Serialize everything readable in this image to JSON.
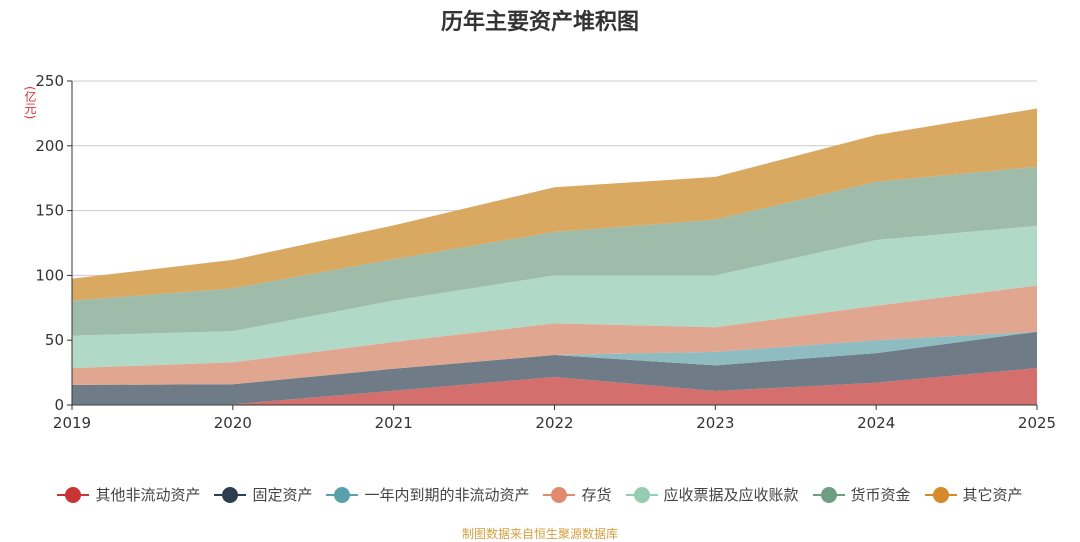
{
  "chart_data": {
    "type": "area",
    "stacked": true,
    "title": "历年主要资产堆积图",
    "ylabel": "(亿元)",
    "xlabel": "",
    "categories": [
      "2019",
      "2020",
      "2021",
      "2022",
      "2023",
      "2024",
      "2025"
    ],
    "ylim": [
      0,
      250
    ],
    "yticks": [
      0,
      50,
      100,
      150,
      200,
      250
    ],
    "grid": true,
    "legend_position": "bottom",
    "series": [
      {
        "name": "其他非流动资产",
        "color": "#c93434",
        "fill": "#d46f6d",
        "values": [
          0.5,
          0.5,
          11,
          21.6,
          10.8,
          17.2,
          28.5
        ]
      },
      {
        "name": "固定资产",
        "color": "#2d3e50",
        "fill": "#6f7c87",
        "values": [
          15,
          15.5,
          17,
          17,
          19.8,
          22.8,
          28
        ]
      },
      {
        "name": "一年内到期的非流动资产",
        "color": "#5aa0ab",
        "fill": "#8fbcc1",
        "values": [
          0,
          0,
          0,
          0,
          10.4,
          10,
          0
        ]
      },
      {
        "name": "存货",
        "color": "#e08a6e",
        "fill": "#e0a690",
        "values": [
          13,
          17,
          20.6,
          24.4,
          19,
          26.6,
          35.7
        ]
      },
      {
        "name": "应收票据及应收账款",
        "color": "#94cdb4",
        "fill": "#b1d9c8",
        "values": [
          25,
          24,
          32,
          37,
          40,
          50.7,
          46
        ]
      },
      {
        "name": "货币资金",
        "color": "#6e9e82",
        "fill": "#9fbba9",
        "values": [
          27,
          33,
          32,
          33.5,
          43,
          45,
          45.6
        ]
      },
      {
        "name": "其它资产",
        "color": "#d68a2a",
        "fill": "#d9a962",
        "values": [
          17,
          22,
          26,
          34.5,
          33,
          36,
          45
        ]
      }
    ]
  },
  "source": "制图数据来自恒生聚源数据库"
}
